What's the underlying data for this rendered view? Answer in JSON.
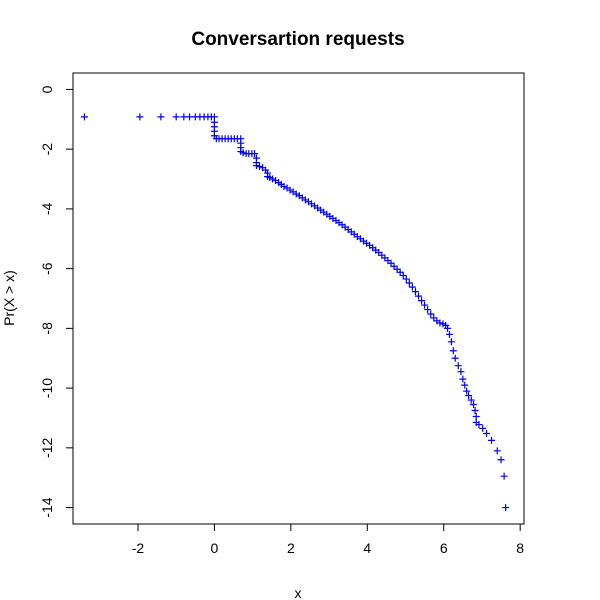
{
  "chart_data": {
    "type": "scatter",
    "title": "Conversartion requests",
    "xlabel": "x",
    "ylabel": "Pr(X > x)",
    "xlim": [
      -3.7,
      8.1
    ],
    "ylim": [
      -14.55,
      0.55
    ],
    "x_ticks": [
      -2,
      0,
      2,
      4,
      6,
      8
    ],
    "y_ticks": [
      0,
      -2,
      -4,
      -6,
      -8,
      -10,
      -12,
      -14
    ],
    "x_tick_labels": [
      "-2",
      "0",
      "2",
      "4",
      "6",
      "8"
    ],
    "y_tick_labels": [
      "0",
      "-2",
      "-4",
      "-6",
      "-8",
      "-10",
      "-12",
      "-14"
    ],
    "grid": false,
    "legend": "none",
    "marker": "+",
    "series": [
      {
        "color": "#0000ff",
        "points": [
          [
            -3.4,
            -0.92
          ],
          [
            -1.95,
            -0.92
          ],
          [
            -1.4,
            -0.92
          ],
          [
            -1.0,
            -0.92
          ],
          [
            -0.8,
            -0.92
          ],
          [
            -0.65,
            -0.92
          ],
          [
            -0.5,
            -0.92
          ],
          [
            -0.38,
            -0.92
          ],
          [
            -0.27,
            -0.92
          ],
          [
            -0.17,
            -0.92
          ],
          [
            -0.08,
            -0.92
          ],
          [
            0.0,
            -0.92
          ],
          [
            0.0,
            -1.1
          ],
          [
            0.0,
            -1.25
          ],
          [
            0.0,
            -1.4
          ],
          [
            0.0,
            -1.55
          ],
          [
            0.05,
            -1.65
          ],
          [
            0.12,
            -1.65
          ],
          [
            0.2,
            -1.65
          ],
          [
            0.28,
            -1.65
          ],
          [
            0.36,
            -1.65
          ],
          [
            0.44,
            -1.65
          ],
          [
            0.52,
            -1.65
          ],
          [
            0.6,
            -1.65
          ],
          [
            0.69,
            -1.65
          ],
          [
            0.69,
            -1.8
          ],
          [
            0.69,
            -1.95
          ],
          [
            0.69,
            -2.08
          ],
          [
            0.75,
            -2.12
          ],
          [
            0.83,
            -2.15
          ],
          [
            0.9,
            -2.15
          ],
          [
            0.98,
            -2.15
          ],
          [
            1.05,
            -2.15
          ],
          [
            1.1,
            -2.3
          ],
          [
            1.1,
            -2.45
          ],
          [
            1.1,
            -2.55
          ],
          [
            1.18,
            -2.58
          ],
          [
            1.26,
            -2.62
          ],
          [
            1.34,
            -2.7
          ],
          [
            1.39,
            -2.8
          ],
          [
            1.39,
            -2.92
          ],
          [
            1.45,
            -2.95
          ],
          [
            1.52,
            -3.0
          ],
          [
            1.6,
            -3.05
          ],
          [
            1.68,
            -3.12
          ],
          [
            1.75,
            -3.18
          ],
          [
            1.82,
            -3.25
          ],
          [
            1.9,
            -3.3
          ],
          [
            1.98,
            -3.37
          ],
          [
            2.06,
            -3.43
          ],
          [
            2.14,
            -3.5
          ],
          [
            2.22,
            -3.56
          ],
          [
            2.3,
            -3.63
          ],
          [
            2.38,
            -3.7
          ],
          [
            2.46,
            -3.76
          ],
          [
            2.54,
            -3.83
          ],
          [
            2.62,
            -3.9
          ],
          [
            2.7,
            -3.97
          ],
          [
            2.78,
            -4.04
          ],
          [
            2.86,
            -4.11
          ],
          [
            2.94,
            -4.18
          ],
          [
            3.02,
            -4.25
          ],
          [
            3.1,
            -4.32
          ],
          [
            3.18,
            -4.39
          ],
          [
            3.26,
            -4.46
          ],
          [
            3.34,
            -4.53
          ],
          [
            3.42,
            -4.61
          ],
          [
            3.5,
            -4.69
          ],
          [
            3.58,
            -4.77
          ],
          [
            3.66,
            -4.85
          ],
          [
            3.74,
            -4.93
          ],
          [
            3.82,
            -5.0
          ],
          [
            3.9,
            -5.08
          ],
          [
            3.98,
            -5.15
          ],
          [
            4.06,
            -5.22
          ],
          [
            4.14,
            -5.3
          ],
          [
            4.22,
            -5.38
          ],
          [
            4.3,
            -5.46
          ],
          [
            4.38,
            -5.55
          ],
          [
            4.46,
            -5.64
          ],
          [
            4.54,
            -5.73
          ],
          [
            4.62,
            -5.82
          ],
          [
            4.7,
            -5.92
          ],
          [
            4.78,
            -6.02
          ],
          [
            4.86,
            -6.12
          ],
          [
            4.94,
            -6.23
          ],
          [
            5.02,
            -6.35
          ],
          [
            5.1,
            -6.48
          ],
          [
            5.18,
            -6.62
          ],
          [
            5.26,
            -6.77
          ],
          [
            5.34,
            -6.92
          ],
          [
            5.42,
            -7.07
          ],
          [
            5.5,
            -7.22
          ],
          [
            5.58,
            -7.37
          ],
          [
            5.66,
            -7.52
          ],
          [
            5.74,
            -7.65
          ],
          [
            5.82,
            -7.75
          ],
          [
            5.9,
            -7.82
          ],
          [
            5.98,
            -7.85
          ],
          [
            6.05,
            -7.9
          ],
          [
            6.1,
            -8.0
          ],
          [
            6.15,
            -8.2
          ],
          [
            6.2,
            -8.45
          ],
          [
            6.25,
            -8.75
          ],
          [
            6.3,
            -9.0
          ],
          [
            6.38,
            -9.25
          ],
          [
            6.45,
            -9.45
          ],
          [
            6.5,
            -9.7
          ],
          [
            6.55,
            -9.9
          ],
          [
            6.6,
            -10.1
          ],
          [
            6.65,
            -10.25
          ],
          [
            6.72,
            -10.4
          ],
          [
            6.78,
            -10.55
          ],
          [
            6.82,
            -10.75
          ],
          [
            6.85,
            -10.95
          ],
          [
            6.85,
            -11.15
          ],
          [
            6.92,
            -11.22
          ],
          [
            7.02,
            -11.35
          ],
          [
            7.12,
            -11.52
          ],
          [
            7.25,
            -11.75
          ],
          [
            7.4,
            -12.1
          ],
          [
            7.5,
            -12.4
          ],
          [
            7.58,
            -12.95
          ],
          [
            7.62,
            -14.0
          ]
        ]
      }
    ]
  }
}
